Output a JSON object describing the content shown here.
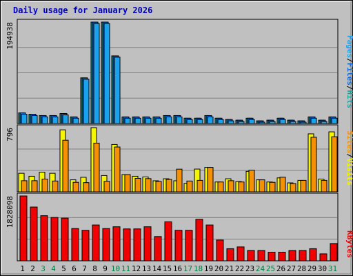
{
  "title": "Daily usage for January 2026",
  "colors": {
    "background": "#c0c0c0",
    "plot_bg": "#c0c0c0",
    "title": "#0000c0",
    "pages": "#1aa3ec",
    "files": "#0a67d8",
    "hits": "#1aa39b",
    "visits": "#f5f500",
    "sites": "#f59000",
    "kbytes": "#f00000",
    "weekend": "#008040",
    "weekday": "#000000"
  },
  "right_labels": {
    "pages": "Pages",
    "files": "Files",
    "hits": "Hits",
    "visits": "Visits",
    "sites": "Sites",
    "kbytes": "KBytes",
    "sep": "/"
  },
  "chart_data": [
    {
      "type": "bar",
      "name": "hits-files-pages",
      "ymax_label": "194938",
      "ylim": [
        0,
        194938
      ],
      "x": [
        "1",
        "2",
        "3",
        "4",
        "5",
        "6",
        "7",
        "8",
        "9",
        "10",
        "11",
        "12",
        "13",
        "14",
        "15",
        "16",
        "17",
        "18",
        "19",
        "20",
        "21",
        "22",
        "23",
        "24",
        "25",
        "26",
        "27",
        "28",
        "29",
        "30",
        "31"
      ],
      "weekend_days": [
        3,
        4,
        10,
        11,
        17,
        18,
        24,
        25,
        31
      ],
      "series": [
        {
          "name": "Hits",
          "values": [
            20400,
            17900,
            15300,
            15300,
            19200,
            12700,
            87700,
            194900,
            194900,
            130000,
            12700,
            12700,
            12700,
            12700,
            15300,
            15300,
            10200,
            10200,
            15300,
            10200,
            7700,
            6400,
            10200,
            5100,
            6400,
            10200,
            6400,
            5100,
            12700,
            6400,
            12700
          ]
        },
        {
          "name": "Files",
          "values": [
            20400,
            17900,
            15300,
            15300,
            19200,
            12700,
            87700,
            194900,
            194900,
            130000,
            12700,
            12700,
            12700,
            12700,
            15300,
            15300,
            10200,
            10200,
            15300,
            10200,
            7700,
            6400,
            10200,
            5100,
            6400,
            10200,
            6400,
            5100,
            12700,
            6400,
            12700
          ]
        },
        {
          "name": "Pages",
          "values": [
            17900,
            15300,
            12700,
            12700,
            16600,
            10200,
            85100,
            192300,
            192300,
            127500,
            10200,
            10200,
            10200,
            10200,
            12700,
            12700,
            7700,
            7700,
            12700,
            7700,
            5100,
            3800,
            7700,
            2600,
            3800,
            7700,
            3800,
            2600,
            10200,
            3800,
            10200
          ]
        }
      ]
    },
    {
      "type": "bar",
      "name": "visits-sites",
      "ymax_label": "796",
      "ylim": [
        0,
        796
      ],
      "series": [
        {
          "name": "Visits",
          "values": [
            230,
            193,
            244,
            230,
            769,
            149,
            180,
            796,
            202,
            587,
            214,
            193,
            185,
            137,
            162,
            137,
            104,
            282,
            303,
            122,
            162,
            127,
            254,
            149,
            122,
            173,
            111,
            142,
            719,
            158,
            744
          ]
        },
        {
          "name": "Sites",
          "values": [
            138,
            138,
            158,
            134,
            640,
            118,
            114,
            604,
            130,
            556,
            214,
            167,
            164,
            129,
            154,
            281,
            134,
            142,
            303,
            122,
            138,
            122,
            269,
            149,
            118,
            181,
            103,
            142,
            677,
            142,
            683
          ]
        }
      ]
    },
    {
      "type": "bar",
      "name": "kbytes",
      "ymax_label": "1828098",
      "ylim": [
        0,
        1828098
      ],
      "series": [
        {
          "name": "KBytes",
          "values": [
            1828098,
            1516000,
            1272000,
            1222000,
            1204000,
            910000,
            860000,
            1010000,
            910000,
            960000,
            900000,
            900000,
            960000,
            684000,
            1100000,
            860000,
            860000,
            1170000,
            1010000,
            586000,
            342000,
            392000,
            292000,
            292000,
            244000,
            244000,
            292000,
            292000,
            342000,
            196000,
            488000
          ]
        }
      ]
    }
  ]
}
